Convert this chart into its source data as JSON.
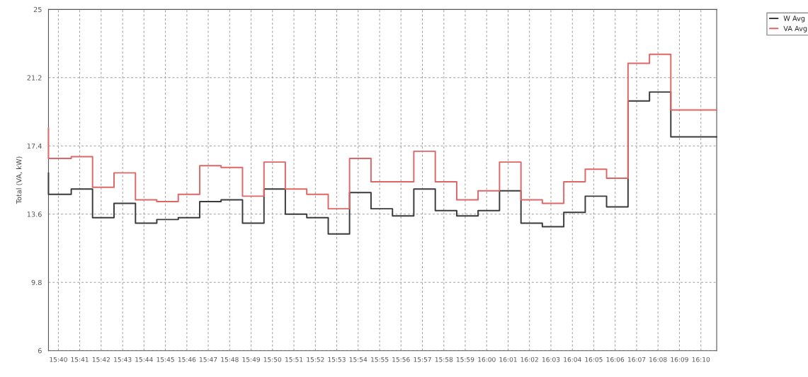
{
  "chart_data": {
    "type": "step",
    "ylabel": "Total (VA, kW)",
    "x": [
      15.659,
      15.659,
      15.6767,
      15.6933,
      15.71,
      15.7267,
      15.7433,
      15.76,
      15.7767,
      15.7933,
      15.81,
      15.8267,
      15.8433,
      15.86,
      15.8767,
      15.8933,
      15.91,
      15.9267,
      15.9433,
      15.96,
      15.9767,
      15.9933,
      16.01,
      16.0267,
      16.0433,
      16.06,
      16.0767,
      16.0933,
      16.11,
      16.1267,
      16.1433,
      16.179
    ],
    "series": [
      {
        "name": "W Avg",
        "color": "#3a3a3a",
        "values": [
          15.9,
          14.7,
          15.0,
          13.4,
          14.2,
          13.1,
          13.3,
          13.4,
          14.3,
          14.4,
          13.1,
          15.0,
          13.6,
          13.4,
          12.5,
          14.8,
          13.9,
          13.5,
          15.0,
          13.8,
          13.5,
          13.8,
          14.9,
          13.1,
          12.9,
          13.7,
          14.6,
          14.0,
          19.9,
          20.4,
          17.9,
          17.9
        ]
      },
      {
        "name": "VA Avg",
        "color": "#e06666",
        "values": [
          18.4,
          16.7,
          16.8,
          15.1,
          15.9,
          14.4,
          14.3,
          14.7,
          16.3,
          16.2,
          14.6,
          16.5,
          15.0,
          14.7,
          13.9,
          16.7,
          15.4,
          15.4,
          17.1,
          15.4,
          14.4,
          14.9,
          16.5,
          14.4,
          14.2,
          15.4,
          16.1,
          15.6,
          22.0,
          22.5,
          19.4,
          19.4
        ]
      }
    ],
    "xlim": [
      15.659,
      16.179
    ],
    "xticks": [
      {
        "value": 15.6667,
        "label": "15:40"
      },
      {
        "value": 15.6833,
        "label": "15:41"
      },
      {
        "value": 15.7,
        "label": "15:42"
      },
      {
        "value": 15.7167,
        "label": "15:43"
      },
      {
        "value": 15.7333,
        "label": "15:44"
      },
      {
        "value": 15.75,
        "label": "15:45"
      },
      {
        "value": 15.7667,
        "label": "15:46"
      },
      {
        "value": 15.7833,
        "label": "15:47"
      },
      {
        "value": 15.8,
        "label": "15:48"
      },
      {
        "value": 15.8167,
        "label": "15:49"
      },
      {
        "value": 15.8333,
        "label": "15:50"
      },
      {
        "value": 15.85,
        "label": "15:51"
      },
      {
        "value": 15.8667,
        "label": "15:52"
      },
      {
        "value": 15.8833,
        "label": "15:53"
      },
      {
        "value": 15.9,
        "label": "15:54"
      },
      {
        "value": 15.9167,
        "label": "15:55"
      },
      {
        "value": 15.9333,
        "label": "15:56"
      },
      {
        "value": 15.95,
        "label": "15:57"
      },
      {
        "value": 15.9667,
        "label": "15:58"
      },
      {
        "value": 15.9833,
        "label": "15:59"
      },
      {
        "value": 16.0,
        "label": "16:00"
      },
      {
        "value": 16.0167,
        "label": "16:01"
      },
      {
        "value": 16.0333,
        "label": "16:02"
      },
      {
        "value": 16.05,
        "label": "16:03"
      },
      {
        "value": 16.0667,
        "label": "16:04"
      },
      {
        "value": 16.0833,
        "label": "16:05"
      },
      {
        "value": 16.1,
        "label": "16:06"
      },
      {
        "value": 16.1167,
        "label": "16:07"
      },
      {
        "value": 16.1333,
        "label": "16:08"
      },
      {
        "value": 16.15,
        "label": "16:09"
      },
      {
        "value": 16.1667,
        "label": "16:10"
      }
    ],
    "ylim": [
      6,
      25
    ],
    "yticks": [
      6,
      9.8,
      13.6,
      17.4,
      21.2,
      25
    ],
    "grid": true,
    "legend": "top right",
    "line_style": "solid",
    "marker": "none"
  }
}
